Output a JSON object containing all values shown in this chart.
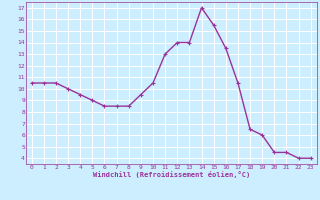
{
  "x": [
    0,
    1,
    2,
    3,
    4,
    5,
    6,
    7,
    8,
    9,
    10,
    11,
    12,
    13,
    14,
    15,
    16,
    17,
    18,
    19,
    20,
    21,
    22,
    23
  ],
  "y": [
    10.5,
    10.5,
    10.5,
    10.0,
    9.5,
    9.0,
    8.5,
    8.5,
    8.5,
    9.5,
    10.5,
    13.0,
    14.0,
    14.0,
    17.0,
    15.5,
    13.5,
    10.5,
    6.5,
    6.0,
    4.5,
    4.5,
    4.0,
    4.0
  ],
  "line_color": "#993399",
  "marker": "+",
  "marker_size": 3,
  "bg_color": "#cceeff",
  "grid_color": "#ffffff",
  "xlabel": "Windchill (Refroidissement éolien,°C)",
  "xlabel_color": "#993399",
  "tick_color": "#993399",
  "ylabel_ticks": [
    4,
    5,
    6,
    7,
    8,
    9,
    10,
    11,
    12,
    13,
    14,
    15,
    16,
    17
  ],
  "xlabel_ticks": [
    0,
    1,
    2,
    3,
    4,
    5,
    6,
    7,
    8,
    9,
    10,
    11,
    12,
    13,
    14,
    15,
    16,
    17,
    18,
    19,
    20,
    21,
    22,
    23
  ],
  "xlim": [
    -0.5,
    23.5
  ],
  "ylim": [
    3.5,
    17.5
  ],
  "line_width": 1.0
}
